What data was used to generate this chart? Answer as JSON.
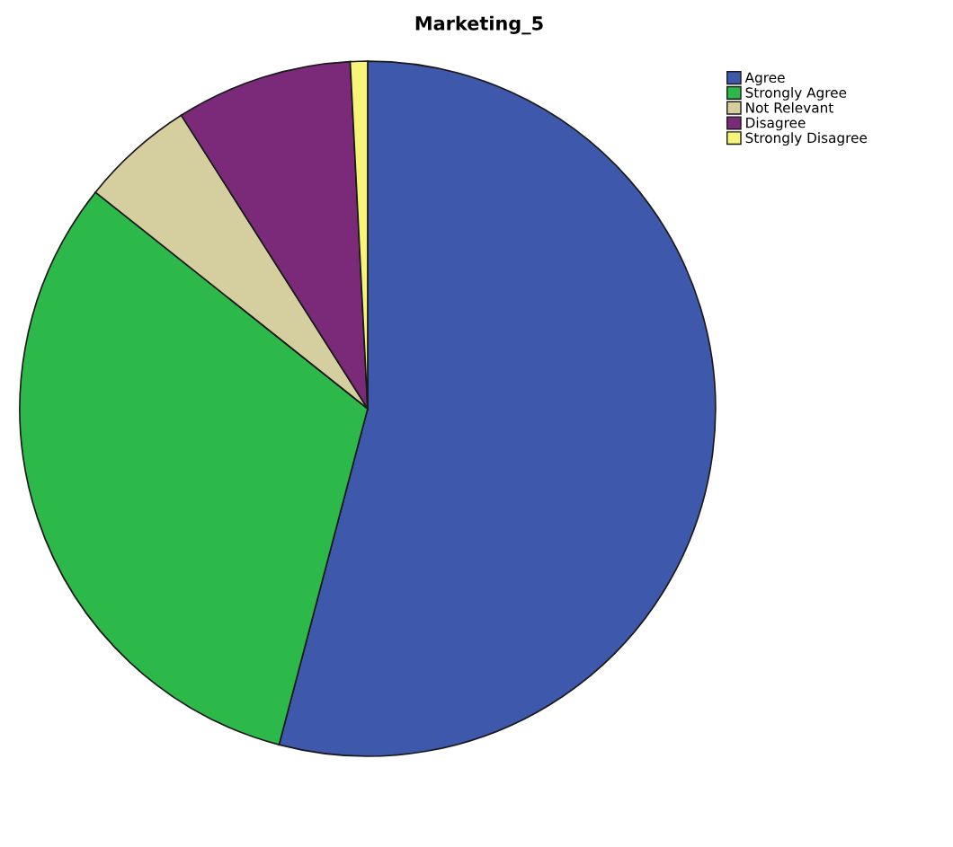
{
  "chart_data": {
    "type": "pie",
    "title": "Marketing_5",
    "categories": [
      "Agree",
      "Strongly Agree",
      "Not Relevant",
      "Disagree",
      "Strongly Disagree"
    ],
    "values": [
      54.1,
      31.6,
      5.3,
      8.2,
      0.8
    ],
    "colors": [
      "#3e58ac",
      "#2db84a",
      "#d5cfa0",
      "#7b2a7a",
      "#f6f57a"
    ],
    "legend": "top right"
  }
}
